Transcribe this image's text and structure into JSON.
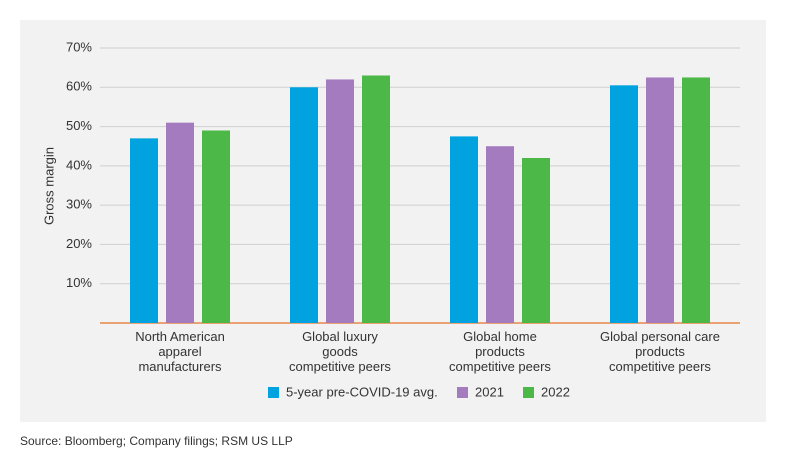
{
  "chart_data": {
    "type": "bar",
    "y_label": "Gross margin",
    "source": "Source: Bloomberg; Company filings; RSM US LLP",
    "categories": [
      "North American\napparel\nmanufacturers",
      "Global luxury\ngoods\ncompetitive peers",
      "Global home\nproducts\ncompetitive peers",
      "Global personal care\nproducts\ncompetitive peers"
    ],
    "series": [
      {
        "name": "5-year pre-COVID-19 avg.",
        "color": "#00a3e0",
        "values": [
          47,
          60,
          47.5,
          60.5
        ]
      },
      {
        "name": "2021",
        "color": "#a57bc0",
        "values": [
          51,
          62,
          45,
          62.5
        ]
      },
      {
        "name": "2022",
        "color": "#4cb848",
        "values": [
          49,
          63,
          42,
          62.5
        ]
      }
    ],
    "ylim": [
      0,
      70
    ],
    "yticks": [
      {
        "value": 10,
        "label": "10%"
      },
      {
        "value": 20,
        "label": "20%"
      },
      {
        "value": 30,
        "label": "30%"
      },
      {
        "value": 40,
        "label": "40%"
      },
      {
        "value": 50,
        "label": "50%"
      },
      {
        "value": 60,
        "label": "60%"
      },
      {
        "value": 70,
        "label": "70%"
      }
    ],
    "grid": true,
    "axis_color": "#e8884a"
  }
}
